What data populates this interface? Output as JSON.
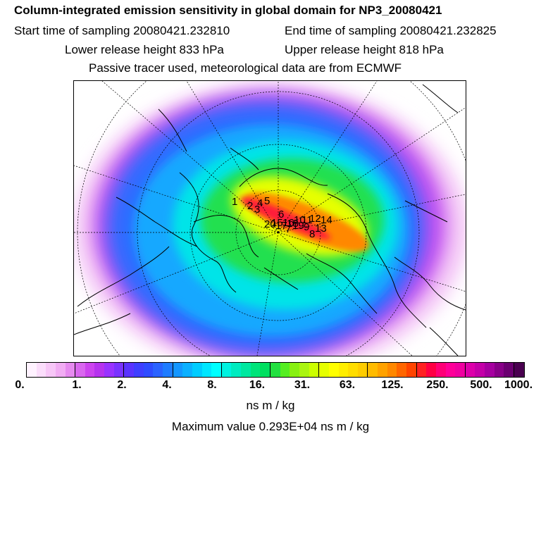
{
  "header": {
    "title": "Column-integrated emission sensitivity in global domain for NP3_20080421",
    "start_time": "Start time of sampling 20080421.232810",
    "end_time": "End time of sampling 20080421.232825",
    "lower_height": "Lower release height  833 hPa",
    "upper_height": "Upper release height  818 hPa",
    "tracer_info": "Passive tracer used, meteorological data are from ECMWF"
  },
  "map": {
    "labels": [
      "1",
      "2",
      "3",
      "4",
      "5",
      "6",
      "7",
      "8",
      "9",
      "10",
      "11",
      "12",
      "13",
      "14",
      "15",
      "16",
      "17",
      "18",
      "19",
      "20"
    ]
  },
  "colorbar": {
    "tick_labels": [
      "0.",
      "1.",
      "2.",
      "4.",
      "8.",
      "16.",
      "31.",
      "63.",
      "125.",
      "250.",
      "500.",
      "1000."
    ],
    "colors": [
      "#fff2ff",
      "#fbddfb",
      "#f7c6f7",
      "#f1acf3",
      "#e68aef",
      "#d967ee",
      "#cc44ee",
      "#b633ee",
      "#9933ff",
      "#7a33ff",
      "#5a33ff",
      "#3f3fff",
      "#2f4cff",
      "#2b63ff",
      "#1f7cff",
      "#1496ff",
      "#0bb0ff",
      "#00ccff",
      "#00e6ff",
      "#00ffff",
      "#00f2e0",
      "#00ebc0",
      "#00e8a0",
      "#00e47a",
      "#00e060",
      "#22e040",
      "#55ee22",
      "#88f011",
      "#aaf511",
      "#ccff00",
      "#e6ff00",
      "#ffff00",
      "#ffee00",
      "#ffdd00",
      "#ffcc00",
      "#ffbb00",
      "#ffa200",
      "#ff8800",
      "#ff6600",
      "#ff4400",
      "#ff2222",
      "#ff0044",
      "#ff0077",
      "#ff0099",
      "#f000a0",
      "#dd00aa",
      "#c400a8",
      "#a600a0",
      "#880088",
      "#6a0070",
      "#4a0050"
    ],
    "units": "ns m / kg",
    "max_value": "Maximum value  0.293E+04 ns m / kg"
  }
}
